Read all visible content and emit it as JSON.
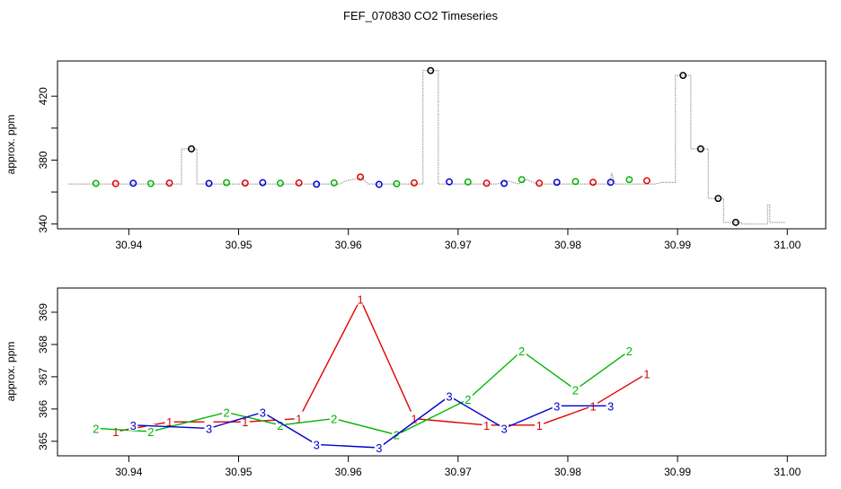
{
  "title": "FEF_070830  CO2 Timeseries",
  "colors": {
    "1": "#e00000",
    "2": "#00b400",
    "3": "#0000d0",
    "trace": "#a0a0a0",
    "peak": "#000000"
  },
  "chart_data": [
    {
      "type": "line",
      "ylabel": "approx. ppm",
      "xlim": [
        30.9335,
        31.0035
      ],
      "ylim": [
        337,
        442
      ],
      "xticks": [
        "30.94",
        "30.95",
        "30.96",
        "30.97",
        "30.98",
        "30.99",
        "31.00"
      ],
      "xtick_values": [
        30.94,
        30.95,
        30.96,
        30.97,
        30.98,
        30.99,
        31.0
      ],
      "yticks": [
        "340",
        "380",
        "420"
      ],
      "ytick_values": [
        340,
        380,
        420
      ],
      "yticks_unlabeled": [
        360,
        400
      ],
      "trace": {
        "x": [
          30.9345,
          30.9448,
          30.9448,
          30.9462,
          30.9462,
          30.9592,
          30.9598,
          30.9612,
          30.9618,
          30.9668,
          30.9668,
          30.9682,
          30.9682,
          30.9735,
          30.9745,
          30.9755,
          30.9762,
          30.9772,
          30.9782,
          30.9838,
          30.984,
          30.9843,
          30.988,
          30.9885,
          30.9892,
          30.9898,
          30.9898,
          30.9912,
          30.9912,
          30.9928,
          30.9928,
          30.9942,
          30.9942,
          30.9958,
          30.9958,
          30.9982,
          30.9982,
          30.9984,
          30.9984,
          30.99985
        ],
        "y": [
          365,
          365,
          387,
          387,
          365,
          365,
          367,
          369,
          365,
          365,
          436,
          436,
          365,
          365,
          367,
          365,
          368,
          365,
          365,
          365,
          372,
          365,
          365,
          366,
          366,
          366,
          433,
          433,
          387,
          387,
          356,
          356,
          341,
          341,
          340,
          340,
          352,
          352,
          341,
          341
        ]
      },
      "points": [
        {
          "x": 30.937,
          "y": 365.4,
          "series": "2"
        },
        {
          "x": 30.9388,
          "y": 365.3,
          "series": "1"
        },
        {
          "x": 30.9404,
          "y": 365.5,
          "series": "3"
        },
        {
          "x": 30.942,
          "y": 365.3,
          "series": "2"
        },
        {
          "x": 30.9437,
          "y": 365.6,
          "series": "1"
        },
        {
          "x": 30.9457,
          "y": 387.0,
          "series": "peak"
        },
        {
          "x": 30.9473,
          "y": 365.4,
          "series": "3"
        },
        {
          "x": 30.9489,
          "y": 365.9,
          "series": "2"
        },
        {
          "x": 30.9506,
          "y": 365.6,
          "series": "1"
        },
        {
          "x": 30.9522,
          "y": 365.9,
          "series": "3"
        },
        {
          "x": 30.9538,
          "y": 365.5,
          "series": "2"
        },
        {
          "x": 30.9555,
          "y": 365.7,
          "series": "1"
        },
        {
          "x": 30.9571,
          "y": 364.9,
          "series": "3"
        },
        {
          "x": 30.9587,
          "y": 365.7,
          "series": "2"
        },
        {
          "x": 30.9611,
          "y": 369.4,
          "series": "1"
        },
        {
          "x": 30.9628,
          "y": 364.8,
          "series": "3"
        },
        {
          "x": 30.9644,
          "y": 365.2,
          "series": "2"
        },
        {
          "x": 30.9675,
          "y": 436.0,
          "series": "peak"
        },
        {
          "x": 30.966,
          "y": 365.7,
          "series": "1"
        },
        {
          "x": 30.9692,
          "y": 366.4,
          "series": "3"
        },
        {
          "x": 30.9709,
          "y": 366.3,
          "series": "2"
        },
        {
          "x": 30.9726,
          "y": 365.5,
          "series": "1"
        },
        {
          "x": 30.9742,
          "y": 365.4,
          "series": "3"
        },
        {
          "x": 30.9758,
          "y": 367.8,
          "series": "2"
        },
        {
          "x": 30.9774,
          "y": 365.5,
          "series": "1"
        },
        {
          "x": 30.979,
          "y": 366.1,
          "series": "3"
        },
        {
          "x": 30.9807,
          "y": 366.6,
          "series": "2"
        },
        {
          "x": 30.9823,
          "y": 366.1,
          "series": "1"
        },
        {
          "x": 30.9839,
          "y": 366.1,
          "series": "3"
        },
        {
          "x": 30.9856,
          "y": 367.8,
          "series": "2"
        },
        {
          "x": 30.9872,
          "y": 367.1,
          "series": "1"
        },
        {
          "x": 30.9905,
          "y": 433.0,
          "series": "peak"
        },
        {
          "x": 30.9921,
          "y": 387.0,
          "series": "peak"
        },
        {
          "x": 30.9937,
          "y": 356.0,
          "series": "peak"
        },
        {
          "x": 30.9953,
          "y": 341.0,
          "series": "peak"
        }
      ]
    },
    {
      "type": "line",
      "ylabel": "approx. ppm",
      "xlim": [
        30.9335,
        31.0035
      ],
      "ylim": [
        364.55,
        369.75
      ],
      "xticks": [
        "30.94",
        "30.95",
        "30.96",
        "30.97",
        "30.98",
        "30.99",
        "31.00"
      ],
      "xtick_values": [
        30.94,
        30.95,
        30.96,
        30.97,
        30.98,
        30.99,
        31.0
      ],
      "yticks": [
        "365",
        "366",
        "367",
        "368",
        "369"
      ],
      "ytick_values": [
        365,
        366,
        367,
        368,
        369
      ],
      "series": [
        {
          "name": "1",
          "marker": "1",
          "x": [
            30.9388,
            30.9437,
            30.9506,
            30.9555,
            30.9611,
            30.966,
            30.9726,
            30.9774,
            30.9823,
            30.9872
          ],
          "y": [
            365.3,
            365.6,
            365.6,
            365.7,
            369.4,
            365.7,
            365.5,
            365.5,
            366.1,
            367.1
          ]
        },
        {
          "name": "2",
          "marker": "2",
          "x": [
            30.937,
            30.942,
            30.9489,
            30.9538,
            30.9587,
            30.9644,
            30.9709,
            30.9758,
            30.9807,
            30.9856
          ],
          "y": [
            365.4,
            365.3,
            365.9,
            365.5,
            365.7,
            365.2,
            366.3,
            367.8,
            366.6,
            367.8
          ]
        },
        {
          "name": "3",
          "marker": "3",
          "x": [
            30.9404,
            30.9473,
            30.9522,
            30.9571,
            30.9628,
            30.9692,
            30.9742,
            30.979,
            30.9839
          ],
          "y": [
            365.5,
            365.4,
            365.9,
            364.9,
            364.8,
            366.4,
            365.4,
            366.1,
            366.1
          ]
        }
      ]
    }
  ]
}
